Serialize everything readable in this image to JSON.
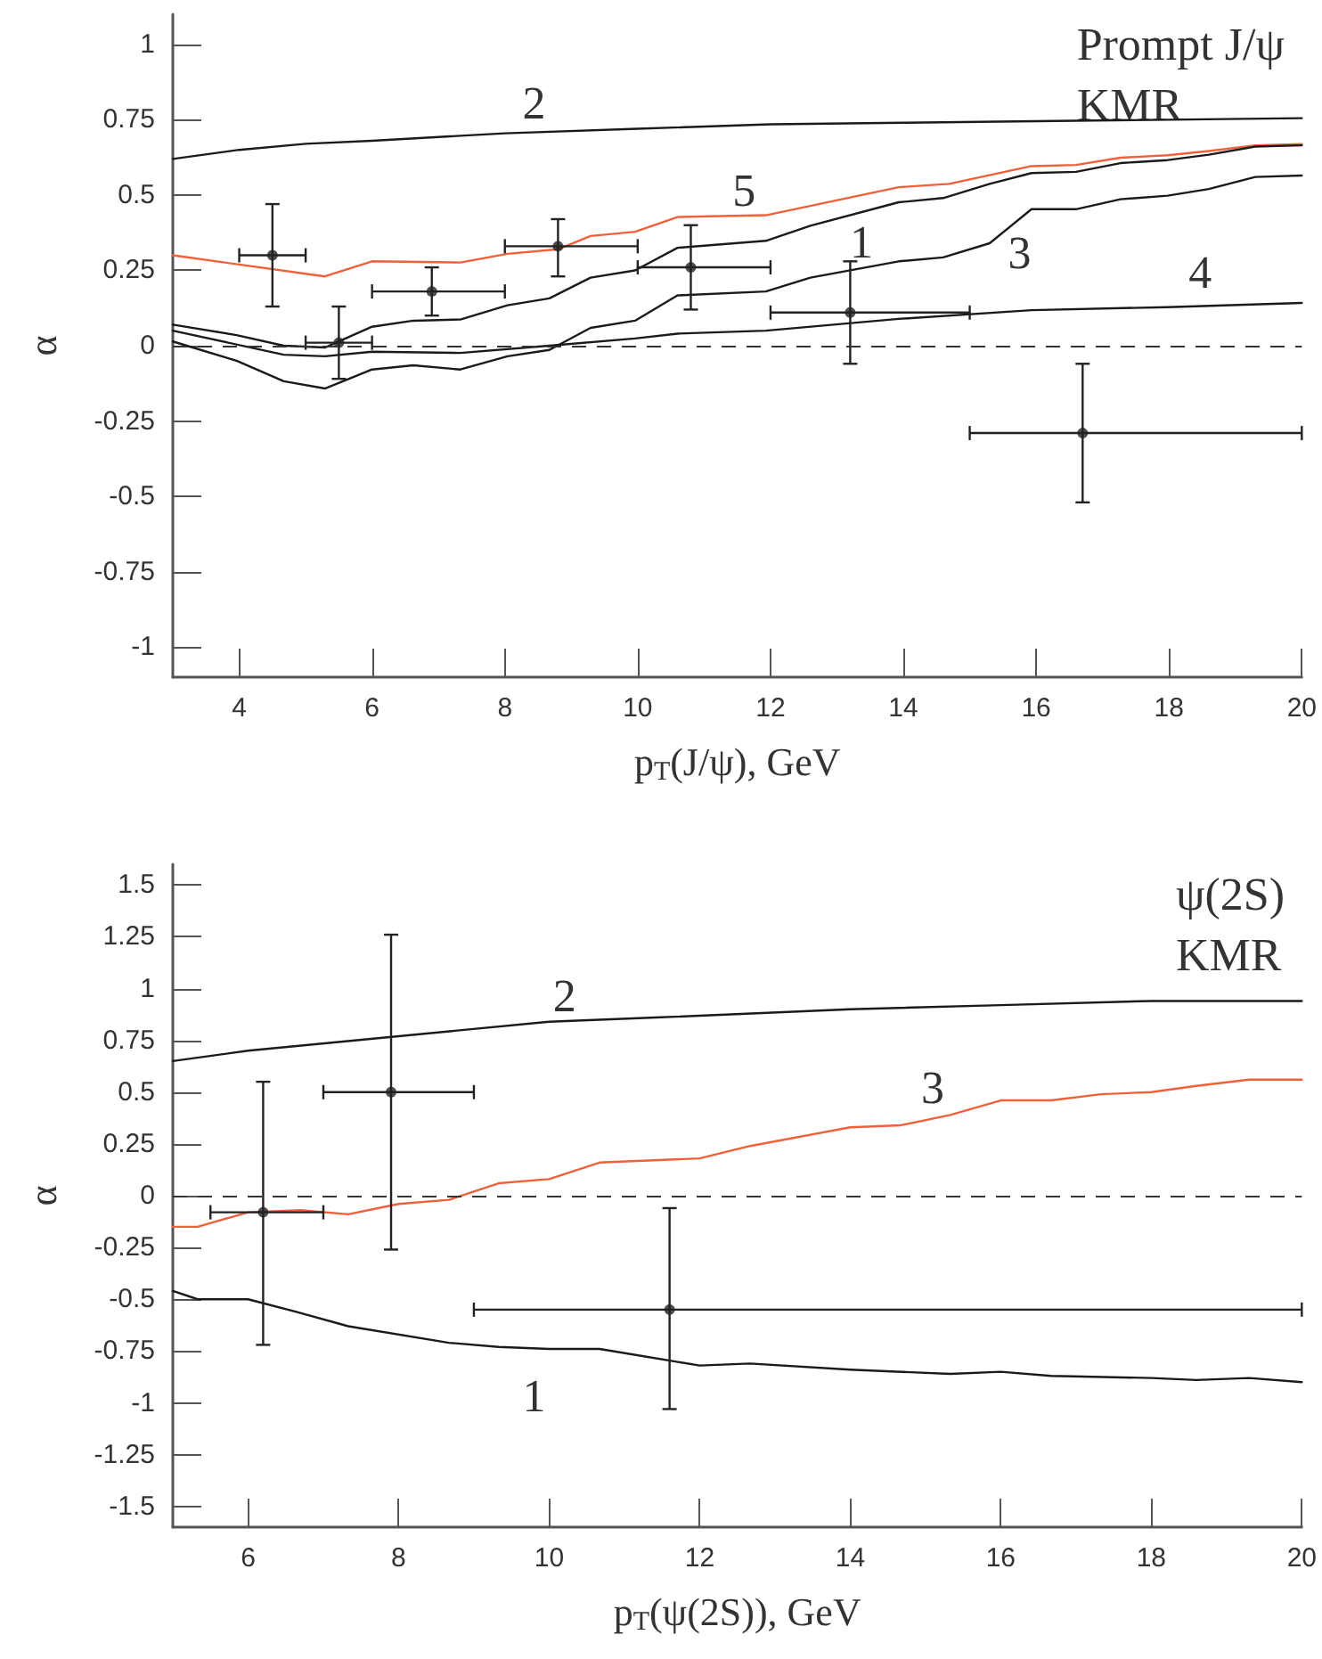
{
  "chart_data": [
    {
      "type": "line",
      "xlabel": "p$_{T}$(J/ψ), GeV",
      "ylabel": "α",
      "xlim": [
        3,
        20
      ],
      "ylim": [
        -1.1,
        1.1
      ],
      "xticks": [
        4,
        6,
        8,
        10,
        12,
        14,
        16,
        18,
        20
      ],
      "yticks": [
        -1,
        -0.75,
        -0.5,
        -0.25,
        0,
        0.25,
        0.5,
        0.75,
        1
      ],
      "grid": false,
      "legend": false,
      "series": [
        {
          "name": "2",
          "color": "#1a1a1a",
          "x": [
            3,
            4,
            5,
            6,
            8,
            10,
            12,
            14,
            16,
            18,
            20
          ],
          "values": [
            0.62,
            0.65,
            0.67,
            0.68,
            0.705,
            0.72,
            0.735,
            0.74,
            0.745,
            0.75,
            0.755
          ]
        },
        {
          "name": "5",
          "color": "#f0603a",
          "x": [
            3,
            5.29,
            6,
            7.33,
            8.04,
            8.8,
            9.29,
            9.96,
            10.6,
            11.93,
            13.93,
            14.69,
            15.93,
            16.6,
            17.27,
            17.98,
            18.6,
            19.3,
            20
          ],
          "values": [
            0.3,
            0.23,
            0.28,
            0.276,
            0.305,
            0.32,
            0.364,
            0.378,
            0.427,
            0.433,
            0.526,
            0.537,
            0.596,
            0.6,
            0.624,
            0.632,
            0.646,
            0.665,
            0.669
          ]
        },
        {
          "name": "1",
          "color": "#1a1a1a",
          "x": [
            3,
            3.96,
            4.67,
            5.29,
            6,
            6.62,
            7.33,
            8.04,
            8.67,
            9.29,
            9.96,
            10.6,
            11.93,
            12.6,
            13.93,
            14.6,
            15.3,
            15.93,
            16.6,
            17.27,
            17.98,
            18.6,
            19.3,
            20
          ],
          "values": [
            0.07,
            0.035,
            0,
            -0.006,
            0.063,
            0.083,
            0.087,
            0.134,
            0.157,
            0.226,
            0.25,
            0.325,
            0.348,
            0.398,
            0.476,
            0.49,
            0.537,
            0.573,
            0.577,
            0.606,
            0.616,
            0.634,
            0.661,
            0.665
          ]
        },
        {
          "name": "3",
          "color": "#1a1a1a",
          "x": [
            3,
            3.96,
            4.67,
            5.29,
            6,
            6.62,
            7.33,
            8.04,
            8.67,
            9.29,
            9.96,
            10.6,
            11.93,
            12.6,
            13.93,
            14.6,
            15.3,
            15.93,
            16.6,
            17.27,
            17.98,
            18.6,
            19.3,
            20
          ],
          "values": [
            0.014,
            -0.05,
            -0.118,
            -0.142,
            -0.079,
            -0.065,
            -0.079,
            -0.035,
            -0.014,
            0.059,
            0.083,
            0.167,
            0.18,
            0.226,
            0.28,
            0.293,
            0.34,
            0.453,
            0.453,
            0.486,
            0.498,
            0.52,
            0.56,
            0.565
          ]
        },
        {
          "name": "4",
          "color": "#1a1a1a",
          "x": [
            3,
            4.67,
            5.29,
            6,
            7.33,
            8.67,
            9.96,
            10.6,
            11.93,
            13.93,
            15.93,
            17.98,
            20
          ],
          "values": [
            0.05,
            -0.03,
            -0.035,
            -0.02,
            -0.024,
            0,
            0.024,
            0.04,
            0.05,
            0.089,
            0.118,
            0.128,
            0.142
          ]
        },
        {
          "type": "scatter",
          "marker": "circle",
          "color": "#222222",
          "x": [
            4.5,
            5.5,
            6.9,
            8.8,
            10.8,
            13.2,
            16.7
          ],
          "values": [
            0.3,
            0.01,
            0.18,
            0.33,
            0.26,
            0.11,
            -0.29
          ],
          "errors": [
            [
              0.13,
              0.47
            ],
            [
              -0.11,
              0.13
            ],
            [
              0.1,
              0.26
            ],
            [
              0.23,
              0.42
            ],
            [
              0.12,
              0.4
            ],
            [
              -0.06,
              0.28
            ],
            [
              -0.52,
              -0.06
            ]
          ],
          "xerrors": [
            [
              4,
              5
            ],
            [
              5,
              6
            ],
            [
              6,
              8
            ],
            [
              8,
              10
            ],
            [
              10,
              12
            ],
            [
              12,
              15
            ],
            [
              15,
              20
            ]
          ]
        }
      ],
      "ref_lines": [
        {
          "axis": "y",
          "value": 0,
          "line_style": "dashed",
          "color": "#333333"
        }
      ],
      "annotations": [
        "Prompt J/ψ",
        "KMR"
      ]
    },
    {
      "type": "line",
      "xlabel": "p$_{T}$(ψ(2S)), GeV",
      "ylabel": "α",
      "xlim": [
        5,
        20
      ],
      "ylim": [
        -1.6,
        1.6
      ],
      "xticks": [
        6,
        8,
        10,
        12,
        14,
        16,
        18,
        20
      ],
      "yticks": [
        -1.5,
        -1.25,
        -1,
        -0.75,
        -0.5,
        -0.25,
        0,
        0.25,
        0.5,
        0.75,
        1,
        1.25,
        1.5
      ],
      "grid": false,
      "legend": false,
      "series": [
        {
          "name": "2",
          "color": "#1a1a1a",
          "x": [
            5,
            6,
            8,
            10,
            11.41,
            14,
            16,
            18,
            20
          ],
          "values": [
            0.65,
            0.7,
            0.77,
            0.84,
            0.86,
            0.9,
            0.92,
            0.94,
            0.94
          ]
        },
        {
          "name": "3",
          "color": "#f0603a",
          "x": [
            5,
            5.33,
            6,
            6.7,
            7.33,
            8,
            8.67,
            9.33,
            10,
            10.67,
            12,
            12.67,
            14,
            14.67,
            15.33,
            16,
            16.67,
            17.33,
            18,
            18.6,
            19.3,
            20
          ],
          "values": [
            -0.15,
            -0.15,
            -0.08,
            -0.07,
            -0.09,
            -0.04,
            -0.02,
            0.06,
            0.08,
            0.16,
            0.18,
            0.24,
            0.33,
            0.34,
            0.39,
            0.46,
            0.46,
            0.49,
            0.5,
            0.53,
            0.56,
            0.56
          ]
        },
        {
          "name": "1",
          "color": "#1a1a1a",
          "x": [
            5,
            5.33,
            6,
            6.63,
            7.33,
            8.67,
            9.33,
            10,
            10.67,
            12,
            12.67,
            14,
            15.33,
            16,
            16.67,
            18,
            18.6,
            19.3,
            20
          ],
          "values": [
            -0.46,
            -0.5,
            -0.5,
            -0.56,
            -0.63,
            -0.71,
            -0.73,
            -0.74,
            -0.74,
            -0.82,
            -0.81,
            -0.84,
            -0.86,
            -0.85,
            -0.87,
            -0.88,
            -0.89,
            -0.88,
            -0.9
          ]
        },
        {
          "type": "scatter",
          "marker": "circle",
          "color": "#222222",
          "x": [
            6.2,
            7.9,
            11.6
          ],
          "values": [
            -0.08,
            0.5,
            -0.55
          ],
          "errors": [
            [
              -0.72,
              0.55
            ],
            [
              -0.26,
              1.26
            ],
            [
              -1.03,
              -0.06
            ]
          ],
          "xerrors": [
            [
              5.5,
              7
            ],
            [
              7,
              9
            ],
            [
              9,
              20
            ]
          ]
        }
      ],
      "ref_lines": [
        {
          "axis": "y",
          "value": 0,
          "line_style": "dashed",
          "color": "#333333"
        }
      ],
      "annotations": [
        "ψ(2S)",
        "KMR"
      ]
    }
  ]
}
